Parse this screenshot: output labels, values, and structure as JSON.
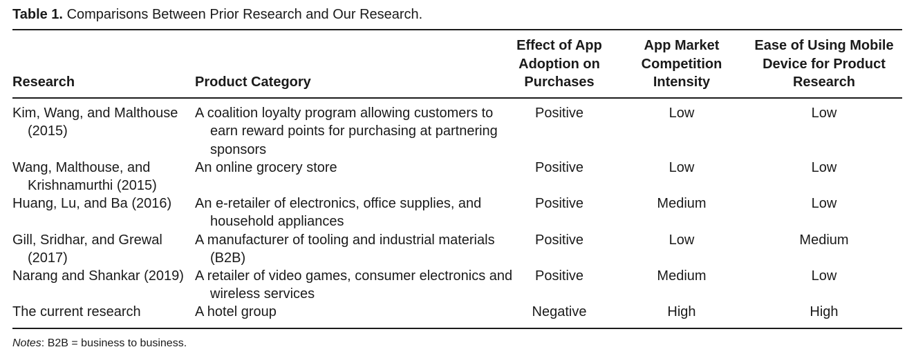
{
  "caption": {
    "label": "Table 1.",
    "text": "Comparisons Between Prior Research and Our Research."
  },
  "headers": {
    "research": "Research",
    "product_category": "Product Category",
    "effect": "Effect of App\nAdoption on\nPurchases",
    "intensity": "App Market\nCompetition\nIntensity",
    "ease": "Ease of Using Mobile\nDevice for Product\nResearch"
  },
  "rows": [
    {
      "research": "Kim, Wang, and Malthouse (2015)",
      "product": "A coalition loyalty program allowing customers to earn reward points for purchasing at partnering sponsors",
      "effect": "Positive",
      "intensity": "Low",
      "ease": "Low"
    },
    {
      "research": "Wang, Malthouse, and Krishnamurthi (2015)",
      "product": "An online grocery store",
      "effect": "Positive",
      "intensity": "Low",
      "ease": "Low"
    },
    {
      "research": "Huang, Lu, and Ba (2016)",
      "product": "An e-retailer of electronics, office supplies, and household appliances",
      "effect": "Positive",
      "intensity": "Medium",
      "ease": "Low"
    },
    {
      "research": "Gill, Sridhar, and Grewal (2017)",
      "product": "A manufacturer of tooling and industrial materials (B2B)",
      "effect": "Positive",
      "intensity": "Low",
      "ease": "Medium"
    },
    {
      "research": "Narang and Shankar (2019)",
      "product": "A retailer of video games, consumer electronics and wireless services",
      "effect": "Positive",
      "intensity": "Medium",
      "ease": "Low"
    },
    {
      "research": "The current research",
      "product": "A hotel group",
      "effect": "Negative",
      "intensity": "High",
      "ease": "High"
    }
  ],
  "notes": {
    "label": "Notes",
    "text": ": B2B = business to business."
  }
}
